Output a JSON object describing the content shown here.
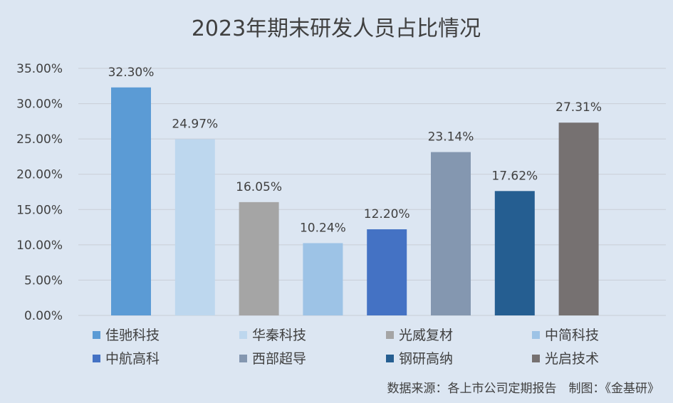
{
  "chart_data": {
    "type": "bar",
    "title": "2023年期末研发人员占比情况",
    "categories": [
      "佳驰科技",
      "华秦科技",
      "光威复材",
      "中简科技",
      "中航高科",
      "西部超导",
      "钢研高纳",
      "光启技术"
    ],
    "values": [
      32.3,
      24.97,
      16.05,
      10.24,
      12.2,
      23.14,
      17.62,
      27.31
    ],
    "data_labels": [
      "32.30%",
      "24.97%",
      "16.05%",
      "10.24%",
      "12.20%",
      "23.14%",
      "17.62%",
      "27.31%"
    ],
    "colors": [
      "#5b9bd5",
      "#bdd7ee",
      "#a5a5a5",
      "#9dc3e6",
      "#4472c4",
      "#8497b0",
      "#255e91",
      "#767171"
    ],
    "ylim": [
      0,
      35
    ],
    "yticks": [
      "0.00%",
      "5.00%",
      "10.00%",
      "15.00%",
      "20.00%",
      "25.00%",
      "30.00%",
      "35.00%"
    ],
    "grid": true,
    "legend_position": "bottom",
    "xlabel": "",
    "ylabel": ""
  },
  "source_note": "数据来源：各上市公司定期报告　制图：《金基研》",
  "colors": {
    "background": "#dce6f2",
    "gridline": "#c9ced6",
    "text": "#404040"
  }
}
